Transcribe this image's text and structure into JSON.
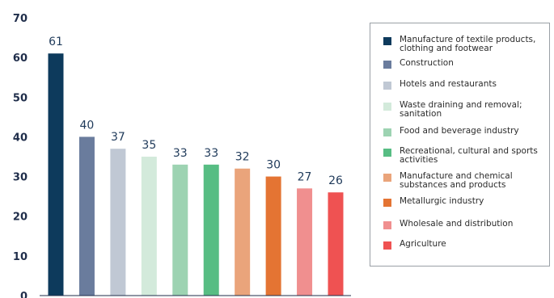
{
  "chart_data": {
    "type": "bar",
    "categories": [
      "Manufacture of textile products, clothing and footwear",
      "Construction",
      "Hotels and restaurants",
      "Waste draining and removal; sanitation",
      "Food and beverage industry",
      "Recreational, cultural and sports activities",
      "Manufacture and chemical substances and products",
      "Metallurgic industry",
      "Wholesale and distribution",
      "Agriculture"
    ],
    "values": [
      61,
      40,
      37,
      35,
      33,
      33,
      32,
      30,
      27,
      26
    ],
    "colors": [
      "#0d3a5c",
      "#6a7c9d",
      "#c0c8d4",
      "#d3eadb",
      "#9dd3b2",
      "#57bd83",
      "#eaa47b",
      "#e47433",
      "#f08f8f",
      "#ef5252"
    ],
    "ylim": [
      0,
      70
    ],
    "yticks": [
      "0",
      "10",
      "20",
      "30",
      "40",
      "50",
      "60",
      "70"
    ],
    "title": "",
    "xlabel": "",
    "ylabel": "",
    "grid": false,
    "legend_position": "right"
  }
}
